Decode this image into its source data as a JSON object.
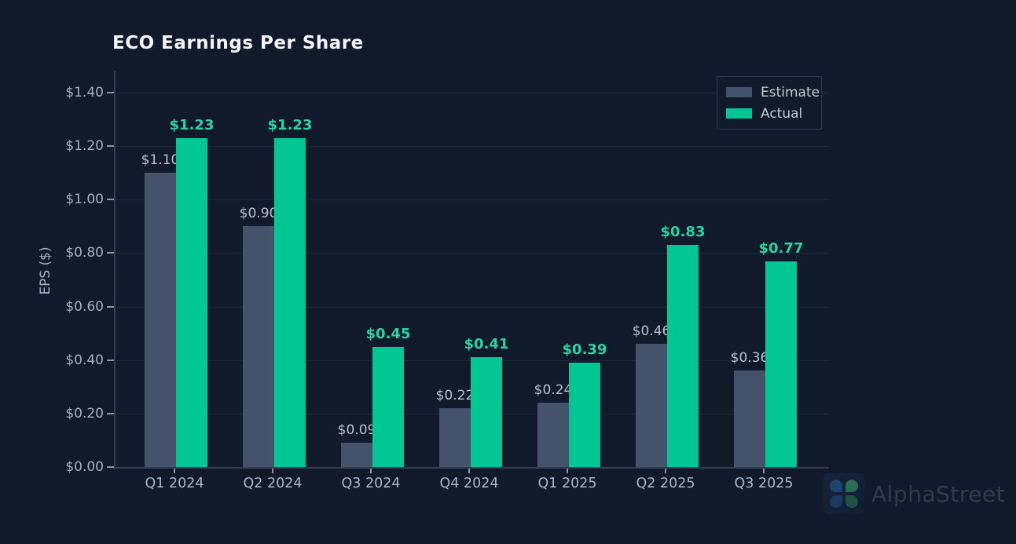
{
  "title": "ECO  Earnings Per Share",
  "y_axis": {
    "label": "EPS ($)"
  },
  "watermark": {
    "label": "AlphaStreet",
    "icon": "alphastreet-leaf-grid-icon"
  },
  "colors": {
    "background": "#111a2b",
    "estimate_bar": "#44526a",
    "actual_bar": "#02c795",
    "estimate_label": "#b7c1ce",
    "actual_label": "#25d6a4",
    "axis_text": "#a5b1c2",
    "gridline": "#1d2739",
    "axis_line": "#333d51"
  },
  "chart_data": {
    "type": "bar",
    "title": "ECO  Earnings Per Share",
    "xlabel": "",
    "ylabel": "EPS ($)",
    "ylim": [
      0,
      1.4
    ],
    "ytick_step": 0.2,
    "ytick_prefix": "$",
    "grid": true,
    "legend_position": "top-right",
    "categories": [
      "Q1 2024",
      "Q2 2024",
      "Q3 2024",
      "Q4 2024",
      "Q1 2025",
      "Q2 2025",
      "Q3 2025"
    ],
    "series": [
      {
        "name": "Estimate",
        "color": "#44526a",
        "label_color": "#b7c1ce",
        "values": [
          1.1,
          0.9,
          0.09,
          0.22,
          0.24,
          0.46,
          0.36
        ]
      },
      {
        "name": "Actual",
        "color": "#02c795",
        "label_color": "#25d6a4",
        "values": [
          1.23,
          1.23,
          0.45,
          0.41,
          0.39,
          0.83,
          0.77
        ]
      }
    ]
  }
}
